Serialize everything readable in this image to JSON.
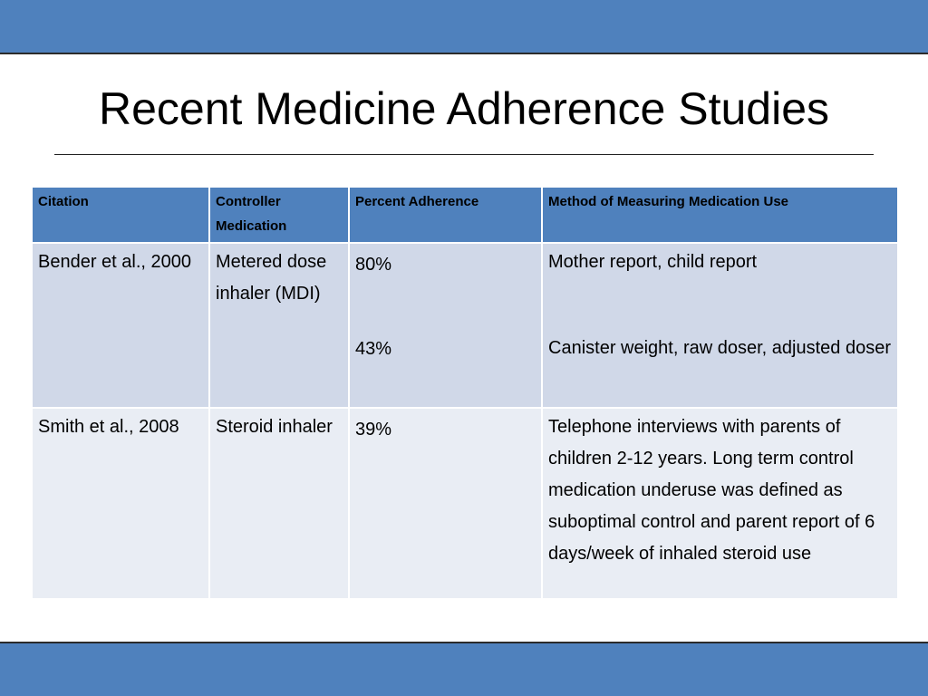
{
  "slide": {
    "title": "Recent Medicine Adherence Studies"
  },
  "table": {
    "headers": [
      "Citation",
      "Controller Medication",
      "Percent Adherence",
      "Method of Measuring Medication Use"
    ],
    "rows": [
      {
        "citation": "Bender et al., 2000",
        "medication": "Metered dose inhaler (MDI)",
        "adherence": [
          "80%",
          "43%"
        ],
        "method": [
          "Mother report, child report",
          "Canister weight, raw doser, adjusted doser"
        ]
      },
      {
        "citation": "Smith et al., 2008",
        "medication": "Steroid inhaler",
        "adherence": [
          "39%"
        ],
        "method": [
          "Telephone interviews with parents of children 2-12 years. Long term control medication underuse was defined as suboptimal control and parent report of 6 days/week of inhaled steroid use"
        ]
      }
    ]
  },
  "colors": {
    "accent": "#4f81bd",
    "row_dark": "#d0d8e8",
    "row_light": "#e9edf4"
  }
}
